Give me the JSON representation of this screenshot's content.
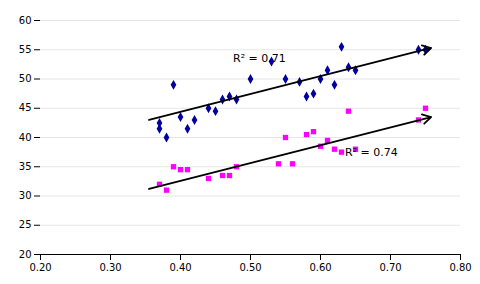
{
  "chart_data": {
    "type": "scatter",
    "series": [
      {
        "color": "#0000A0",
        "marker": "diamond",
        "x": [
          0.37,
          0.37,
          0.38,
          0.39,
          0.4,
          0.41,
          0.42,
          0.44,
          0.45,
          0.46,
          0.47,
          0.48,
          0.5,
          0.53,
          0.55,
          0.57,
          0.58,
          0.59,
          0.6,
          0.61,
          0.62,
          0.63,
          0.64,
          0.65,
          0.74,
          0.75
        ],
        "values": [
          41.5,
          42.5,
          40.0,
          49.0,
          43.5,
          41.5,
          43.0,
          45.0,
          44.5,
          46.5,
          47.0,
          46.5,
          50.0,
          53.0,
          50.0,
          49.5,
          47.0,
          47.5,
          50.0,
          51.5,
          49.0,
          55.5,
          52.0,
          51.5,
          55.0,
          55.0
        ]
      },
      {
        "color": "#FF00FF",
        "marker": "square",
        "x": [
          0.37,
          0.38,
          0.39,
          0.4,
          0.41,
          0.44,
          0.46,
          0.47,
          0.48,
          0.54,
          0.55,
          0.56,
          0.58,
          0.59,
          0.6,
          0.61,
          0.62,
          0.63,
          0.64,
          0.65,
          0.74,
          0.75
        ],
        "values": [
          32.0,
          31.0,
          35.0,
          34.5,
          34.5,
          33.0,
          33.5,
          33.5,
          35.0,
          35.5,
          40.0,
          35.5,
          40.5,
          41.0,
          38.5,
          39.5,
          38.0,
          37.5,
          44.5,
          38.0,
          43.0,
          45.0
        ]
      }
    ],
    "arrows": [
      {
        "x": [
          0.355,
          0.758
        ],
        "values": [
          43.0,
          55.3
        ],
        "color": "#000000"
      },
      {
        "x": [
          0.355,
          0.758
        ],
        "values": [
          31.2,
          43.5
        ],
        "color": "#000000"
      }
    ],
    "annotations": [
      {
        "text": "R² = 0.71",
        "x": 0.475,
        "y": 52.5
      },
      {
        "text": "R² = 0.74",
        "x": 0.635,
        "y": 36.5
      }
    ],
    "xlim": [
      0.2,
      0.8
    ],
    "ylim": [
      20,
      60
    ],
    "xticks": [
      {
        "value": 0.2,
        "label": "0.20"
      },
      {
        "value": 0.3,
        "label": "0.30"
      },
      {
        "value": 0.4,
        "label": "0.40"
      },
      {
        "value": 0.5,
        "label": "0.50"
      },
      {
        "value": 0.6,
        "label": "0.60"
      },
      {
        "value": 0.7,
        "label": "0.70"
      },
      {
        "value": 0.8,
        "label": "0.80"
      }
    ],
    "yticks": [
      20,
      25,
      30,
      35,
      40,
      45,
      50,
      55,
      60
    ],
    "grid": "y"
  }
}
